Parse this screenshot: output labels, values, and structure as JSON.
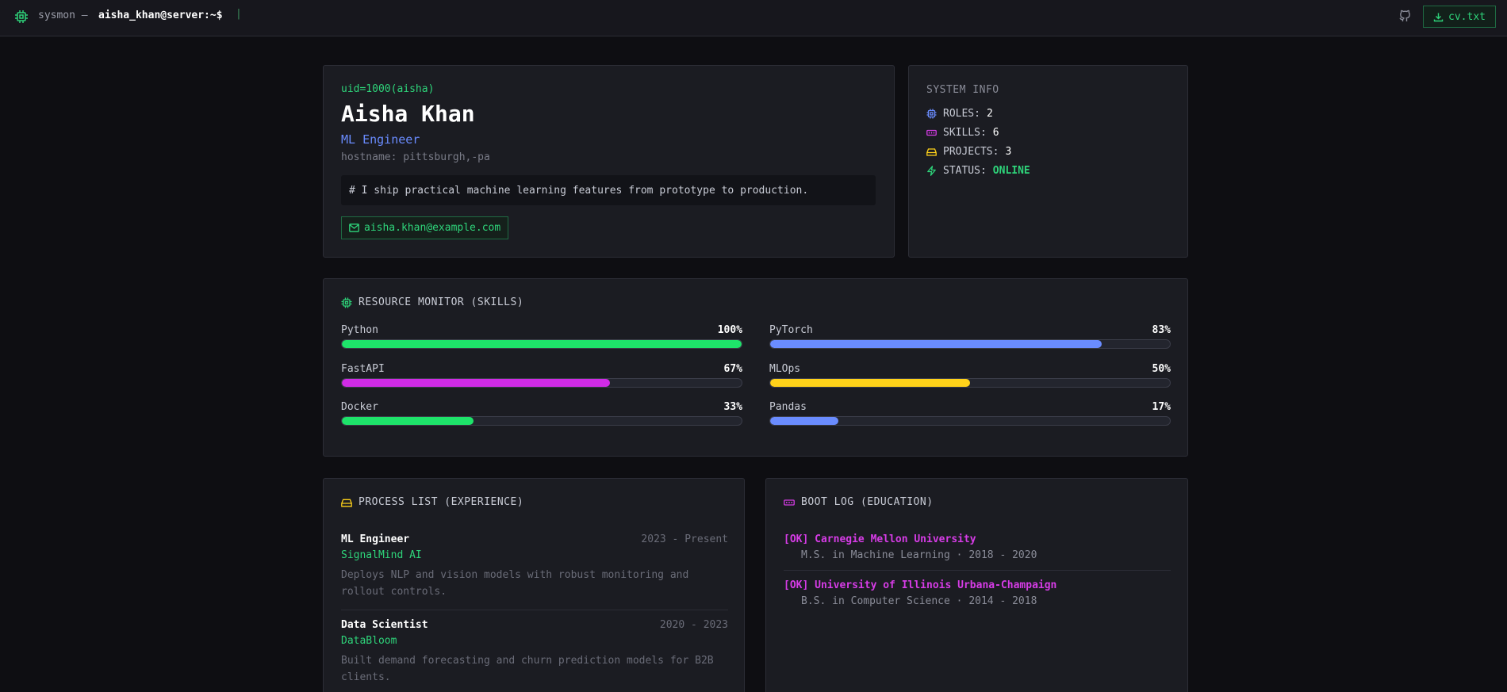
{
  "topbar": {
    "app_name": "sysmon —",
    "user_prompt": "aisha_khan@server:~$",
    "cursor": "|",
    "cv_button": "cv.txt"
  },
  "profile": {
    "uid": "uid=1000(aisha)",
    "name": "Aisha Khan",
    "role": "ML Engineer",
    "hostname": "hostname: pittsburgh,-pa",
    "bio": "# I ship practical machine learning features from prototype to production.",
    "email": "aisha.khan@example.com"
  },
  "system_info": {
    "title": "SYSTEM INFO",
    "roles_label": "ROLES:",
    "roles_value": "2",
    "skills_label": "SKILLS:",
    "skills_value": "6",
    "projects_label": "PROJECTS:",
    "projects_value": "3",
    "status_label": "STATUS:",
    "status_value": "ONLINE"
  },
  "skills": {
    "title": "RESOURCE MONITOR (SKILLS)",
    "items": [
      {
        "name": "Python",
        "percent": "100%",
        "level": 100,
        "color": "#1ee36a"
      },
      {
        "name": "PyTorch",
        "percent": "83%",
        "level": 83,
        "color": "#6a8cff"
      },
      {
        "name": "FastAPI",
        "percent": "67%",
        "level": 67,
        "color": "#d02be6"
      },
      {
        "name": "MLOps",
        "percent": "50%",
        "level": 50,
        "color": "#ffd21a"
      },
      {
        "name": "Docker",
        "percent": "33%",
        "level": 33,
        "color": "#1ee36a"
      },
      {
        "name": "Pandas",
        "percent": "17%",
        "level": 17,
        "color": "#6a8cff"
      }
    ]
  },
  "experience": {
    "title": "PROCESS LIST (EXPERIENCE)",
    "jobs": [
      {
        "title": "ML Engineer",
        "dates": "2023 - Present",
        "company": "SignalMind AI",
        "description": "Deploys NLP and vision models with robust monitoring and rollout controls."
      },
      {
        "title": "Data Scientist",
        "dates": "2020 - 2023",
        "company": "DataBloom",
        "description": "Built demand forecasting and churn prediction models for B2B clients."
      }
    ]
  },
  "education": {
    "title": "BOOT LOG (EDUCATION)",
    "entries": [
      {
        "school": "[OK] Carnegie Mellon University",
        "detail": "M.S. in Machine Learning · 2018 - 2020"
      },
      {
        "school": "[OK] University of Illinois Urbana-Champaign",
        "detail": "B.S. in Computer Science · 2014 - 2018"
      }
    ]
  },
  "colors": {
    "accent_green": "#2ed47a",
    "accent_blue": "#6a8cff",
    "accent_magenta": "#d63ce6",
    "accent_yellow": "#ffd21a"
  }
}
